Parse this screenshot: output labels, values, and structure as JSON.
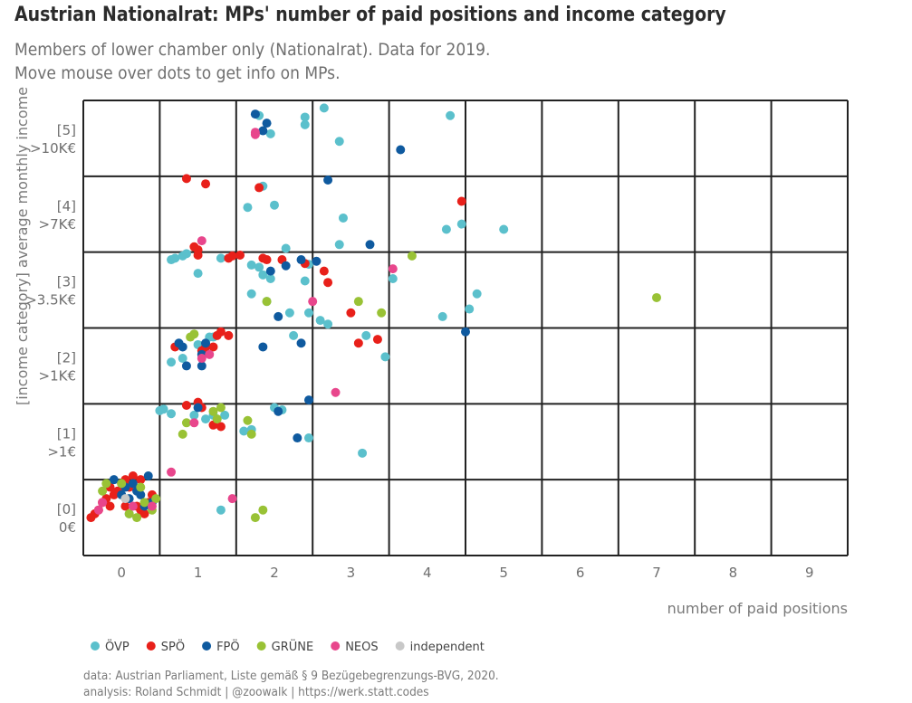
{
  "title": "Austrian Nationalrat: MPs' number of paid positions and income category",
  "subtitle_line1": "Members of lower chamber only (Nationalrat). Data for 2019.",
  "subtitle_line2": "Move mouse over dots to get info on MPs.",
  "caption_line1": "data: Austrian Parliament, Liste gemäß § 9 Bezügebegrenzungs-BVG, 2020.",
  "caption_line2": "analysis: Roland Schmidt | @zoowalk | https://werk.statt.codes",
  "chart_data": {
    "type": "scatter",
    "xlabel": "number of paid positions",
    "ylabel": "[income category] average monthly income",
    "x_categories": [
      "0",
      "1",
      "2",
      "3",
      "4",
      "5",
      "6",
      "7",
      "8",
      "9"
    ],
    "y_categories": [
      {
        "code": "[0]",
        "label": "0€"
      },
      {
        "code": "[1]",
        "label": ">1€"
      },
      {
        "code": "[2]",
        "label": ">1K€"
      },
      {
        "code": "[3]",
        "label": ">3.5K€"
      },
      {
        "code": "[4]",
        "label": ">7K€"
      },
      {
        "code": "[5]",
        "label": ">10K€"
      }
    ],
    "grid": true,
    "legend_position": "bottom-left",
    "series": [
      {
        "name": "ÖVP",
        "color": "#5bc0cc",
        "points": [
          [
            1.8,
            5.3
          ],
          [
            1.95,
            5.06
          ],
          [
            2.4,
            5.28
          ],
          [
            2.4,
            5.18
          ],
          [
            2.65,
            5.4
          ],
          [
            2.85,
            4.96
          ],
          [
            4.3,
            5.3
          ],
          [
            1.85,
            4.37
          ],
          [
            1.65,
            4.09
          ],
          [
            2.0,
            4.12
          ],
          [
            4.25,
            3.8
          ],
          [
            4.45,
            3.87
          ],
          [
            0.65,
            3.4
          ],
          [
            0.7,
            3.42
          ],
          [
            0.8,
            3.45
          ],
          [
            0.85,
            3.48
          ],
          [
            1.0,
            3.22
          ],
          [
            1.3,
            3.42
          ],
          [
            1.7,
            3.33
          ],
          [
            1.8,
            3.3
          ],
          [
            1.95,
            3.15
          ],
          [
            1.85,
            3.2
          ],
          [
            2.15,
            3.55
          ],
          [
            2.4,
            3.12
          ],
          [
            2.45,
            3.34
          ],
          [
            2.9,
            3.95
          ],
          [
            2.85,
            3.6
          ],
          [
            3.55,
            3.15
          ],
          [
            5.0,
            3.8
          ],
          [
            0.65,
            2.05
          ],
          [
            0.8,
            2.1
          ],
          [
            1.0,
            2.28
          ],
          [
            1.1,
            2.18
          ],
          [
            1.15,
            2.38
          ],
          [
            1.2,
            2.38
          ],
          [
            1.7,
            2.95
          ],
          [
            1.9,
            2.85
          ],
          [
            2.2,
            2.7
          ],
          [
            2.25,
            2.4
          ],
          [
            2.45,
            2.7
          ],
          [
            2.6,
            2.6
          ],
          [
            2.7,
            2.55
          ],
          [
            3.2,
            2.4
          ],
          [
            3.45,
            2.12
          ],
          [
            4.2,
            2.65
          ],
          [
            4.55,
            2.75
          ],
          [
            4.65,
            2.95
          ],
          [
            0.5,
            1.41
          ],
          [
            0.55,
            1.43
          ],
          [
            0.65,
            1.37
          ],
          [
            0.95,
            1.35
          ],
          [
            1.1,
            1.3
          ],
          [
            1.2,
            1.35
          ],
          [
            1.25,
            1.3
          ],
          [
            1.35,
            1.35
          ],
          [
            1.6,
            1.14
          ],
          [
            1.7,
            1.16
          ],
          [
            2.0,
            1.45
          ],
          [
            2.1,
            1.42
          ],
          [
            2.45,
            1.05
          ],
          [
            3.15,
            0.85
          ],
          [
            1.3,
            0.1
          ],
          [
            0.1,
            0.05
          ]
        ]
      },
      {
        "name": "SPÖ",
        "color": "#e8201a",
        "points": [
          [
            0.85,
            4.47
          ],
          [
            1.1,
            4.4
          ],
          [
            1.8,
            4.35
          ],
          [
            4.45,
            4.17
          ],
          [
            0.95,
            3.57
          ],
          [
            1.0,
            3.53
          ],
          [
            1.0,
            3.46
          ],
          [
            1.4,
            3.42
          ],
          [
            1.45,
            3.45
          ],
          [
            1.55,
            3.46
          ],
          [
            1.85,
            3.42
          ],
          [
            1.9,
            3.4
          ],
          [
            2.1,
            3.4
          ],
          [
            2.4,
            3.35
          ],
          [
            2.65,
            3.25
          ],
          [
            2.7,
            3.1
          ],
          [
            0.7,
            2.25
          ],
          [
            1.05,
            2.2
          ],
          [
            1.1,
            2.25
          ],
          [
            1.2,
            2.25
          ],
          [
            1.25,
            2.4
          ],
          [
            1.3,
            2.45
          ],
          [
            1.4,
            2.4
          ],
          [
            3.0,
            2.7
          ],
          [
            3.1,
            2.3
          ],
          [
            3.35,
            2.35
          ],
          [
            0.85,
            1.48
          ],
          [
            1.0,
            1.52
          ],
          [
            1.05,
            1.45
          ],
          [
            1.2,
            1.22
          ],
          [
            1.3,
            1.2
          ],
          [
            -0.4,
            0.0
          ],
          [
            -0.35,
            0.05
          ],
          [
            -0.3,
            0.1
          ],
          [
            -0.25,
            0.2
          ],
          [
            -0.2,
            0.25
          ],
          [
            -0.15,
            0.4
          ],
          [
            -0.1,
            0.3
          ],
          [
            -0.05,
            0.35
          ],
          [
            0.0,
            0.45
          ],
          [
            0.05,
            0.5
          ],
          [
            0.1,
            0.4
          ],
          [
            0.15,
            0.55
          ],
          [
            0.2,
            0.15
          ],
          [
            0.25,
            0.1
          ],
          [
            0.3,
            0.05
          ],
          [
            0.35,
            0.2
          ],
          [
            0.4,
            0.3
          ],
          [
            -0.15,
            0.15
          ],
          [
            0.05,
            0.15
          ],
          [
            0.25,
            0.5
          ]
        ]
      },
      {
        "name": "FPÖ",
        "color": "#0f5a9f",
        "points": [
          [
            1.75,
            5.32
          ],
          [
            1.85,
            5.1
          ],
          [
            1.9,
            5.2
          ],
          [
            3.65,
            4.85
          ],
          [
            2.7,
            4.45
          ],
          [
            1.95,
            3.25
          ],
          [
            2.15,
            3.32
          ],
          [
            2.35,
            3.4
          ],
          [
            2.55,
            3.38
          ],
          [
            3.25,
            3.6
          ],
          [
            0.75,
            2.3
          ],
          [
            0.8,
            2.25
          ],
          [
            0.85,
            2.0
          ],
          [
            1.05,
            2.15
          ],
          [
            1.05,
            2.0
          ],
          [
            1.1,
            2.3
          ],
          [
            1.85,
            2.25
          ],
          [
            2.05,
            2.65
          ],
          [
            2.35,
            2.3
          ],
          [
            4.5,
            2.45
          ],
          [
            1.0,
            1.45
          ],
          [
            2.05,
            1.4
          ],
          [
            2.45,
            1.55
          ],
          [
            2.3,
            1.05
          ],
          [
            -0.1,
            0.5
          ],
          [
            0.0,
            0.3
          ],
          [
            0.05,
            0.4
          ],
          [
            0.1,
            0.25
          ],
          [
            0.15,
            0.45
          ],
          [
            0.2,
            0.35
          ],
          [
            0.25,
            0.3
          ],
          [
            0.3,
            0.15
          ],
          [
            0.35,
            0.55
          ],
          [
            0.4,
            0.2
          ]
        ]
      },
      {
        "name": "GRÜNE",
        "color": "#99c235",
        "points": [
          [
            3.8,
            3.45
          ],
          [
            7.0,
            2.9
          ],
          [
            1.9,
            2.85
          ],
          [
            3.1,
            2.85
          ],
          [
            3.4,
            2.7
          ],
          [
            0.9,
            2.38
          ],
          [
            0.95,
            2.42
          ],
          [
            0.85,
            1.25
          ],
          [
            1.2,
            1.4
          ],
          [
            1.25,
            1.3
          ],
          [
            1.3,
            1.45
          ],
          [
            1.65,
            1.28
          ],
          [
            1.7,
            1.1
          ],
          [
            0.8,
            1.1
          ],
          [
            1.75,
            0.0
          ],
          [
            1.85,
            0.1
          ],
          [
            -0.25,
            0.35
          ],
          [
            -0.2,
            0.45
          ],
          [
            0.0,
            0.45
          ],
          [
            0.1,
            0.05
          ],
          [
            0.2,
            0.0
          ],
          [
            0.25,
            0.4
          ],
          [
            0.3,
            0.2
          ],
          [
            0.4,
            0.1
          ],
          [
            0.45,
            0.25
          ]
        ]
      },
      {
        "name": "NEOS",
        "color": "#e8468c",
        "points": [
          [
            1.05,
            3.65
          ],
          [
            3.55,
            3.28
          ],
          [
            1.75,
            5.05
          ],
          [
            1.75,
            5.08
          ],
          [
            1.05,
            2.1
          ],
          [
            2.5,
            2.85
          ],
          [
            1.15,
            2.15
          ],
          [
            0.95,
            1.25
          ],
          [
            2.8,
            1.65
          ],
          [
            0.65,
            0.6
          ],
          [
            1.45,
            0.25
          ],
          [
            -0.3,
            0.1
          ],
          [
            -0.25,
            0.2
          ],
          [
            0.15,
            0.15
          ],
          [
            0.4,
            0.15
          ]
        ]
      },
      {
        "name": "independent",
        "color": "#c8c8c8",
        "points": [
          [
            0.05,
            0.25
          ]
        ]
      }
    ]
  }
}
